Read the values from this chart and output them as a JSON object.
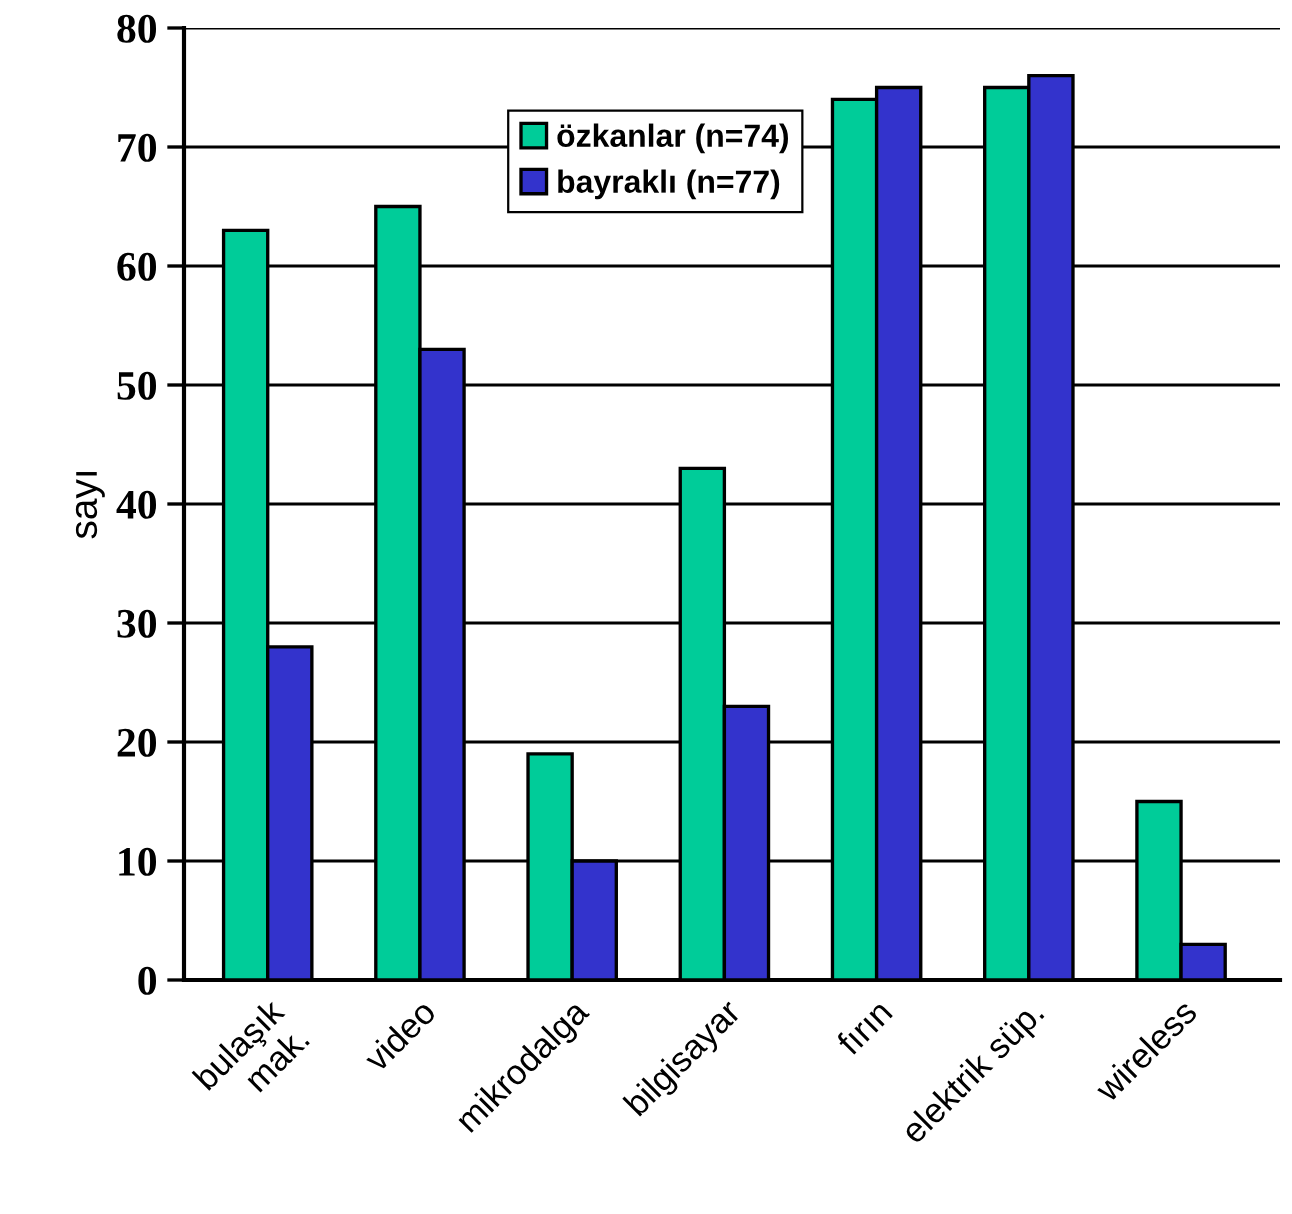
{
  "chart_data": {
    "type": "bar",
    "ylabel": "sayı",
    "categories": [
      "bulaşık\nmak.",
      "video",
      "mikrodalga",
      "bilgisayar",
      "fırın",
      "elektrik süp.",
      "wireless"
    ],
    "series": [
      {
        "name": "özkanlar (n=74)",
        "color": "#00cc99",
        "values": [
          63,
          65,
          19,
          43,
          74,
          75,
          15
        ]
      },
      {
        "name": "bayraklı (n=77)",
        "color": "#3333cc",
        "values": [
          28,
          53,
          10,
          23,
          75,
          76,
          3
        ]
      }
    ],
    "ylim": [
      0,
      80
    ],
    "yticks": [
      0,
      10,
      20,
      30,
      40,
      50,
      60,
      70,
      80
    ],
    "grid": "y",
    "legend": "top center"
  }
}
